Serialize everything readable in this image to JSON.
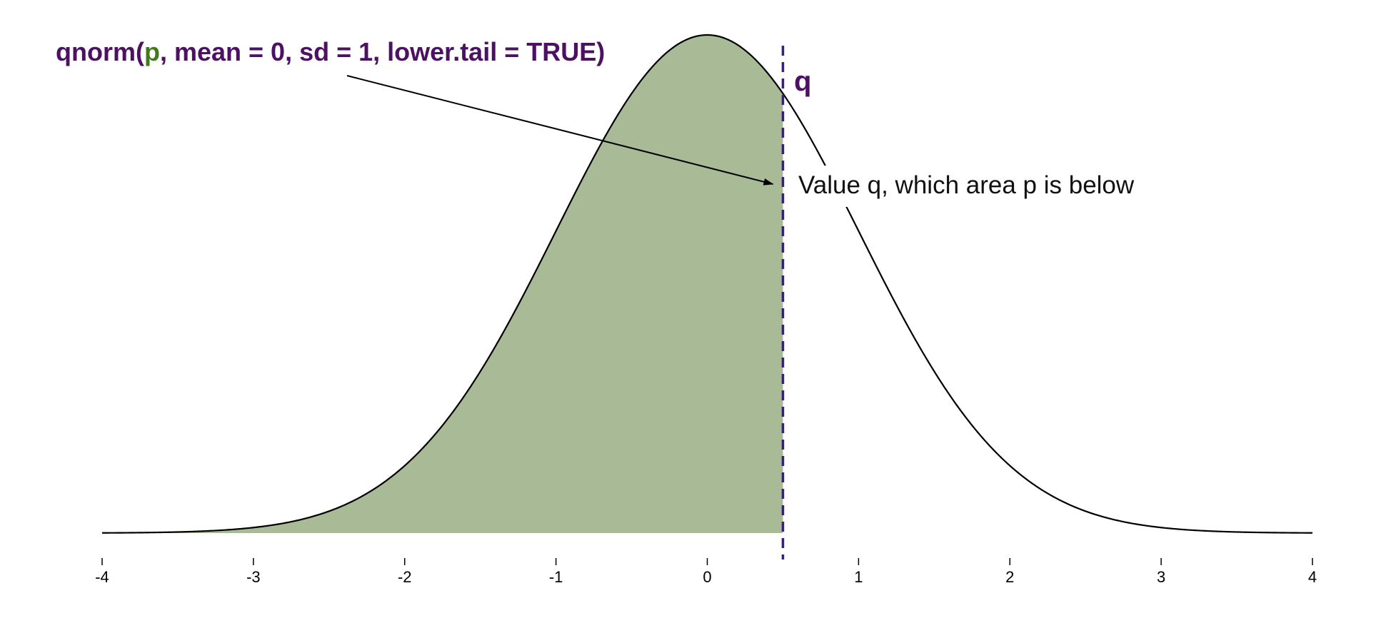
{
  "chart_data": {
    "type": "area",
    "function": "normal density",
    "mean": 0,
    "sd": 1,
    "xlim": [
      -4,
      4
    ],
    "ticks": [
      "-4",
      "-3",
      "-2",
      "-1",
      "0",
      "1",
      "2",
      "3",
      "4"
    ],
    "q": 0.5,
    "shaded_region": "below q",
    "title": {
      "prefix": "qnorm(",
      "arg": "p",
      "suffix": ", mean = 0, sd = 1, lower.tail = TRUE)"
    },
    "q_label": "q",
    "annotation": "Value q, which area p is below",
    "grid": false
  },
  "colors": {
    "fill": "#a8bb96",
    "curve": "#000000",
    "q_line": "#3a1a8c",
    "title": "#4d1163",
    "arg": "#3f7a1e"
  }
}
